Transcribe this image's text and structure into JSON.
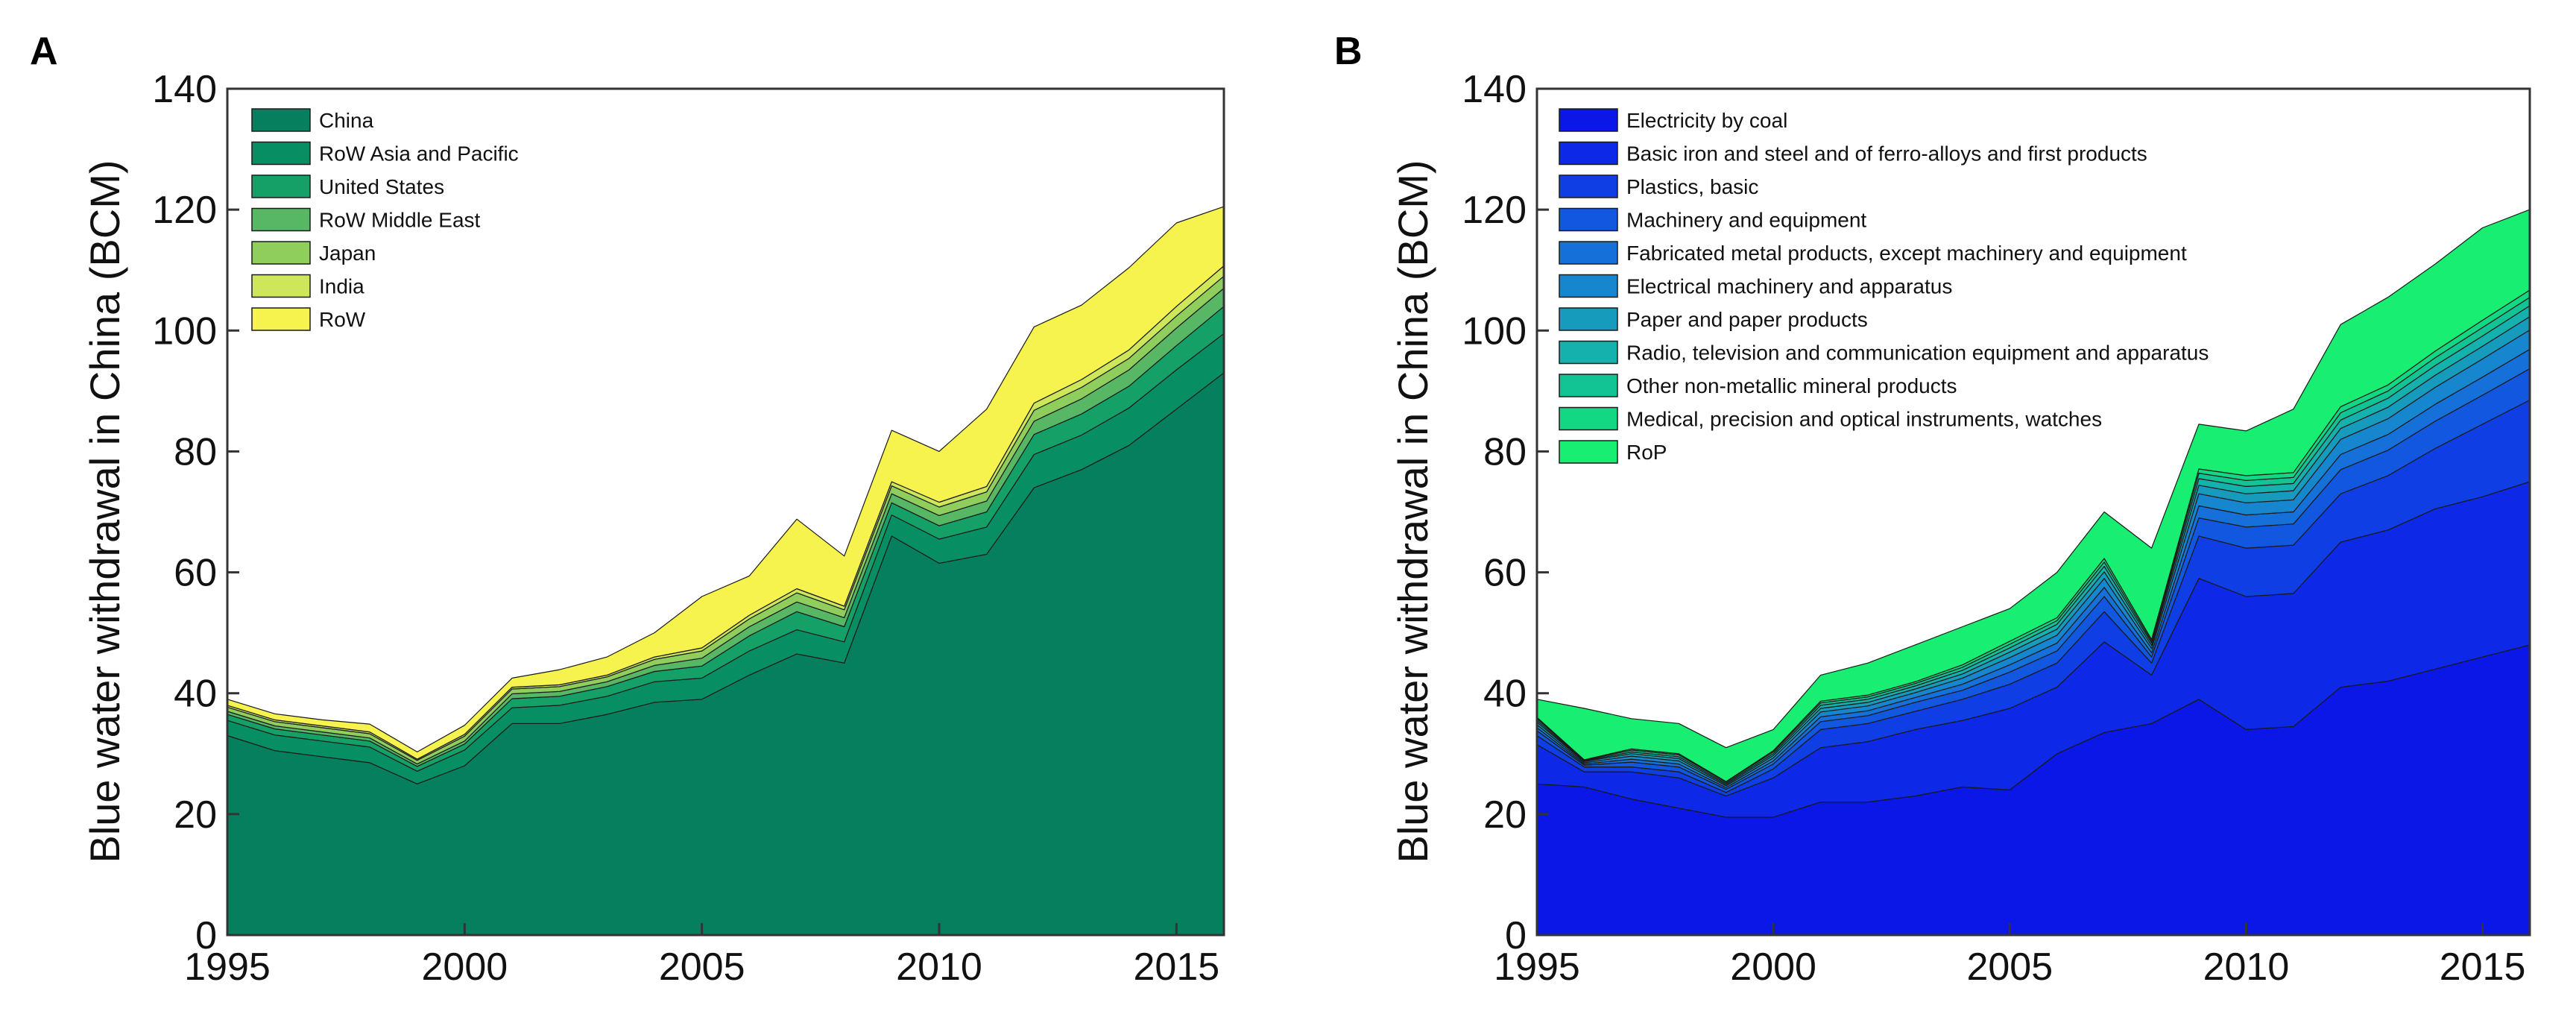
{
  "chart_data": [
    {
      "panel": "A",
      "type": "area",
      "stacked": true,
      "title": "",
      "xlabel": "",
      "ylabel": "Blue water withdrawal in China (BCM)",
      "xlim": [
        1995,
        2016
      ],
      "ylim": [
        0,
        140
      ],
      "xticks": [
        1995,
        2000,
        2005,
        2010,
        2015
      ],
      "yticks": [
        0,
        20,
        40,
        60,
        80,
        100,
        120,
        140
      ],
      "legend_position": "top-left",
      "x": [
        1995,
        1996,
        1997,
        1998,
        1999,
        2000,
        2001,
        2002,
        2003,
        2004,
        2005,
        2006,
        2007,
        2008,
        2009,
        2010,
        2011,
        2012,
        2013,
        2014,
        2015,
        2016
      ],
      "series": [
        {
          "name": "China",
          "color": "#067f5f",
          "values": [
            33,
            30.5,
            29.5,
            28.5,
            25,
            28,
            35,
            35,
            36.5,
            38.5,
            39,
            43,
            46.5,
            45,
            66,
            61.5,
            63,
            74,
            77,
            81,
            87,
            93
          ]
        },
        {
          "name": "RoW Asia and Pacific",
          "color": "#078f63",
          "values": [
            2.5,
            2.6,
            2.6,
            2.6,
            2.1,
            2.6,
            2.6,
            3,
            3,
            3.4,
            3.5,
            4,
            4,
            3.5,
            3.5,
            4,
            4.5,
            5.5,
            5.7,
            6.2,
            6.5,
            6.5
          ]
        },
        {
          "name": "United States",
          "color": "#15a068",
          "values": [
            1,
            1,
            1,
            1,
            0.8,
            1,
            1.5,
            1.5,
            1.6,
            1.7,
            2,
            2.5,
            3,
            2.5,
            2,
            2.2,
            2.5,
            3.3,
            3.5,
            3.6,
            4,
            4.5
          ]
        },
        {
          "name": "RoW Middle East",
          "color": "#58b765",
          "values": [
            0.5,
            0.5,
            0.5,
            0.5,
            0.4,
            0.5,
            0.8,
            0.8,
            0.8,
            1,
            1.3,
            1.5,
            1.6,
            1.5,
            1.5,
            1.7,
            1.8,
            2.2,
            2.5,
            2.7,
            2.9,
            3
          ]
        },
        {
          "name": "Japan",
          "color": "#8fce5c",
          "values": [
            0.7,
            0.7,
            0.7,
            0.7,
            0.6,
            0.8,
            0.8,
            0.8,
            0.8,
            1,
            1.2,
            1.3,
            1.5,
            1.3,
            1.3,
            1.4,
            1.5,
            1.8,
            1.9,
            1.9,
            2,
            2
          ]
        },
        {
          "name": "India",
          "color": "#cde65a",
          "values": [
            0.3,
            0.3,
            0.3,
            0.3,
            0.2,
            0.3,
            0.3,
            0.3,
            0.3,
            0.4,
            0.5,
            0.6,
            0.7,
            0.6,
            0.7,
            0.8,
            0.9,
            1.2,
            1.3,
            1.4,
            1.6,
            1.7
          ]
        },
        {
          "name": "RoW",
          "color": "#f6f34e",
          "values": [
            1,
            1,
            1,
            1.3,
            1.2,
            1.5,
            1.5,
            2.5,
            3,
            4,
            8.5,
            6.5,
            11.5,
            8.3,
            8.5,
            8.4,
            12.8,
            12.6,
            12.3,
            13.6,
            13.8,
            9.8
          ]
        }
      ]
    },
    {
      "panel": "B",
      "type": "area",
      "stacked": true,
      "title": "",
      "xlabel": "",
      "ylabel": "Blue water withdrawal in China (BCM)",
      "xlim": [
        1995,
        2016
      ],
      "ylim": [
        0,
        140
      ],
      "xticks": [
        1995,
        2000,
        2005,
        2010,
        2015
      ],
      "yticks": [
        0,
        20,
        40,
        60,
        80,
        100,
        120,
        140
      ],
      "legend_position": "top-left",
      "x": [
        1995,
        1996,
        1997,
        1998,
        1999,
        2000,
        2001,
        2002,
        2003,
        2004,
        2005,
        2006,
        2007,
        2008,
        2009,
        2010,
        2011,
        2012,
        2013,
        2014,
        2015,
        2016
      ],
      "series": [
        {
          "name": "Electricity by coal",
          "color": "#0b17e6",
          "values": [
            25,
            24.5,
            22.5,
            21,
            19.5,
            19.5,
            22,
            22,
            23,
            24.5,
            24,
            30,
            33.5,
            35,
            39,
            34,
            34.5,
            41,
            42,
            44,
            46,
            48
          ]
        },
        {
          "name": "Basic iron and steel and of ferro-alloys and first products",
          "color": "#0d28e6",
          "values": [
            6.5,
            2.5,
            4.5,
            5,
            3.5,
            6.5,
            9,
            10,
            11,
            11,
            13.5,
            11,
            15,
            8,
            20,
            22,
            22,
            24,
            25,
            26.5,
            26.5,
            27
          ]
        },
        {
          "name": "Plastics, basic",
          "color": "#0f3ee4",
          "values": [
            1.5,
            0.8,
            0.8,
            1,
            0.6,
            1.5,
            3,
            3,
            3,
            3.5,
            4,
            4,
            5,
            2,
            7,
            8,
            8,
            8,
            9,
            10,
            12,
            13.5
          ]
        },
        {
          "name": "Machinery and equipment",
          "color": "#1257e0",
          "values": [
            0.8,
            0.3,
            0.8,
            0.8,
            0.5,
            0.8,
            1.3,
            1.3,
            1.5,
            1.5,
            2,
            2,
            2.5,
            1,
            3,
            3.5,
            3.5,
            4,
            4.2,
            4.5,
            4.8,
            5.2
          ]
        },
        {
          "name": "Fabricated metal products, except machinery and equipment",
          "color": "#1570d9",
          "values": [
            0.5,
            0.2,
            0.5,
            0.5,
            0.3,
            0.5,
            0.8,
            0.8,
            0.8,
            1,
            1.2,
            1.3,
            1.5,
            0.7,
            2,
            2,
            2,
            2.5,
            2.6,
            2.8,
            3,
            3.2
          ]
        },
        {
          "name": "Electrical machinery and apparatus",
          "color": "#1687cf",
          "values": [
            0.5,
            0.2,
            0.5,
            0.5,
            0.3,
            0.5,
            0.8,
            0.8,
            0.8,
            1,
            1.2,
            1.3,
            1.5,
            0.7,
            2,
            2,
            2,
            2.5,
            2.6,
            2.8,
            3,
            3.2
          ]
        },
        {
          "name": "Paper and paper products",
          "color": "#179bbd",
          "values": [
            0.4,
            0.2,
            0.4,
            0.4,
            0.2,
            0.4,
            0.6,
            0.6,
            0.6,
            0.7,
            0.9,
            1,
            1.1,
            0.5,
            1.4,
            1.5,
            1.5,
            1.8,
            1.9,
            2,
            2.1,
            2.2
          ]
        },
        {
          "name": "Radio, television and communication equipment and apparatus",
          "color": "#15b1ad",
          "values": [
            0.3,
            0.1,
            0.3,
            0.3,
            0.2,
            0.3,
            0.5,
            0.5,
            0.5,
            0.6,
            0.7,
            0.8,
            0.9,
            0.4,
            1.1,
            1.2,
            1.2,
            1.4,
            1.5,
            1.6,
            1.7,
            1.8
          ]
        },
        {
          "name": "Other non-metallic mineral products",
          "color": "#12c393",
          "values": [
            0.3,
            0.1,
            0.3,
            0.3,
            0.2,
            0.3,
            0.4,
            0.4,
            0.4,
            0.5,
            0.6,
            0.6,
            0.7,
            0.3,
            0.9,
            1,
            1,
            1.2,
            1.2,
            1.3,
            1.4,
            1.4
          ]
        },
        {
          "name": "Medical, precision and optical instruments, watches",
          "color": "#12d883",
          "values": [
            0.2,
            0.1,
            0.2,
            0.2,
            0.1,
            0.2,
            0.3,
            0.3,
            0.3,
            0.4,
            0.5,
            0.5,
            0.6,
            0.3,
            0.7,
            0.8,
            0.8,
            1,
            1,
            1.1,
            1.2,
            1.2
          ]
        },
        {
          "name": "RoP",
          "color": "#18ee72",
          "values": [
            3,
            8.5,
            5,
            5,
            5.6,
            3.5,
            4.3,
            5.3,
            6.1,
            6.3,
            5.4,
            7.5,
            7.7,
            15.1,
            7.4,
            7.4,
            10.5,
            13.6,
            14.5,
            14.4,
            15.3,
            13.3
          ]
        }
      ]
    }
  ]
}
